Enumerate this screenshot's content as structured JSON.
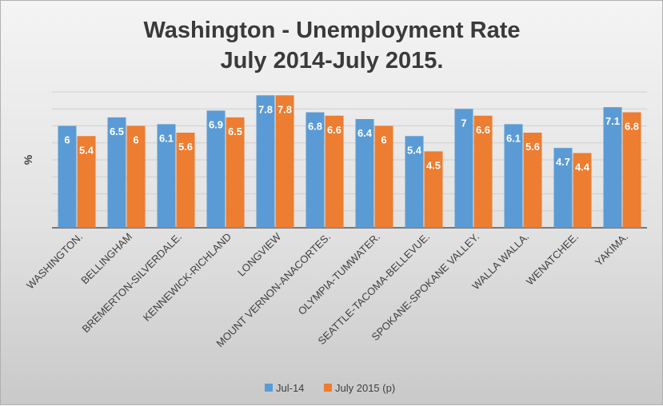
{
  "colors": {
    "series1": "#5b9bd5",
    "series2": "#ed7d31",
    "grid": "#cfcfcf",
    "axis": "#555555"
  },
  "chart_data": {
    "type": "bar",
    "title": [
      "Washington - Unemployment Rate",
      "July 2014-July 2015."
    ],
    "ylabel": "%",
    "xlabel": "",
    "ylim": [
      0,
      8
    ],
    "grid": true,
    "legend_position": "bottom",
    "categories": [
      "WASHINGTON.",
      "BELLINGHAM",
      "BREMERTON-SILVERDALE.",
      "KENNEWICK-RICHLAND",
      "LONGVIEW",
      "MOUNT VERNON-ANACORTES.",
      "OLYMPIA-TUMWATER.",
      "SEATTLE-TACOMA-BELLEVUE.",
      "SPOKANE-SPOKANE VALLEY.",
      "WALLA WALLA.",
      "WENATCHEE.",
      "YAKIMA."
    ],
    "series": [
      {
        "name": "Jul-14",
        "values": [
          6,
          6.5,
          6.1,
          6.9,
          7.8,
          6.8,
          6.4,
          5.4,
          7,
          6.1,
          4.7,
          7.1
        ]
      },
      {
        "name": "July 2015 (p)",
        "values": [
          5.4,
          6,
          5.6,
          6.5,
          7.8,
          6.6,
          6,
          4.5,
          6.6,
          5.6,
          4.4,
          6.8
        ]
      }
    ]
  }
}
